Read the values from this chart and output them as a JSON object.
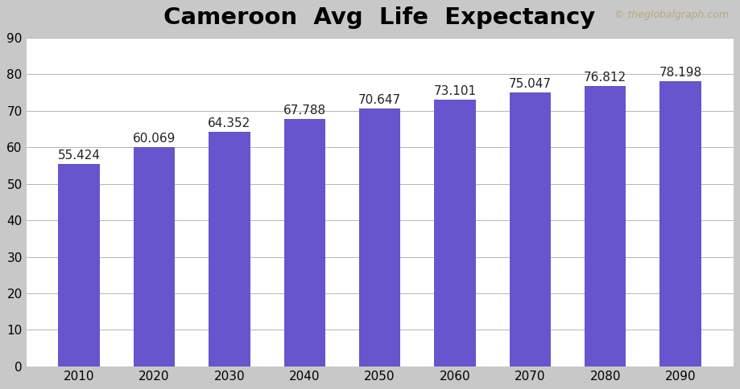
{
  "title": "Cameroon  Avg  Life  Expectancy",
  "watermark": "© theglobalgraph.com",
  "categories": [
    2010,
    2020,
    2030,
    2040,
    2050,
    2060,
    2070,
    2080,
    2090
  ],
  "values": [
    55.424,
    60.069,
    64.352,
    67.788,
    70.647,
    73.101,
    75.047,
    76.812,
    78.198
  ],
  "bar_color": "#6655CC",
  "background_color": "#ffffff",
  "outer_background": "#c8c8c8",
  "ylim": [
    0,
    90
  ],
  "yticks": [
    0,
    10,
    20,
    30,
    40,
    50,
    60,
    70,
    80,
    90
  ],
  "title_fontsize": 21,
  "label_fontsize": 11,
  "tick_fontsize": 11,
  "watermark_color": "#b8a878",
  "watermark_fontsize": 9,
  "bar_width": 0.55
}
